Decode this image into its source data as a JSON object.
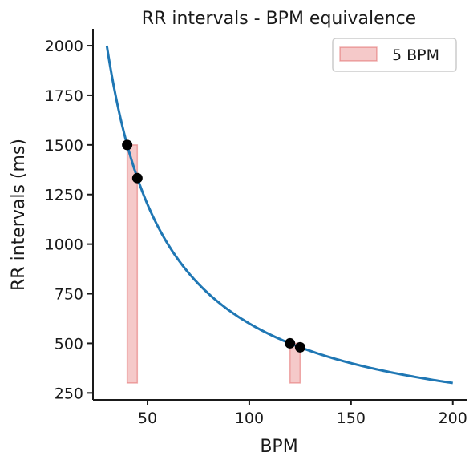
{
  "chart_data": {
    "type": "line",
    "title": "RR intervals - BPM equivalence",
    "xlabel": "BPM",
    "ylabel": "RR intervals (ms)",
    "xlim": [
      23.2,
      206.8
    ],
    "ylim": [
      215,
      2085
    ],
    "x_ticks": [
      "50",
      "100",
      "150",
      "200"
    ],
    "y_ticks": [
      "250",
      "500",
      "750",
      "1000",
      "1250",
      "1500",
      "1750",
      "2000"
    ],
    "curve": {
      "relation": "RR = 60000 / BPM",
      "x_range": [
        30,
        200
      ],
      "color": "#1f77b4"
    },
    "points": [
      {
        "x": 40,
        "y": 1500
      },
      {
        "x": 45,
        "y": 1333
      },
      {
        "x": 120,
        "y": 500
      },
      {
        "x": 125,
        "y": 480
      }
    ],
    "shaded_bands": [
      {
        "x_range": [
          40,
          45
        ],
        "y_range": [
          300,
          1500
        ]
      },
      {
        "x_range": [
          120,
          125
        ],
        "y_range": [
          300,
          500
        ]
      }
    ],
    "band_color": "#d62728",
    "legend": {
      "label": "5 BPM",
      "position": "top-right"
    },
    "grid": false
  }
}
